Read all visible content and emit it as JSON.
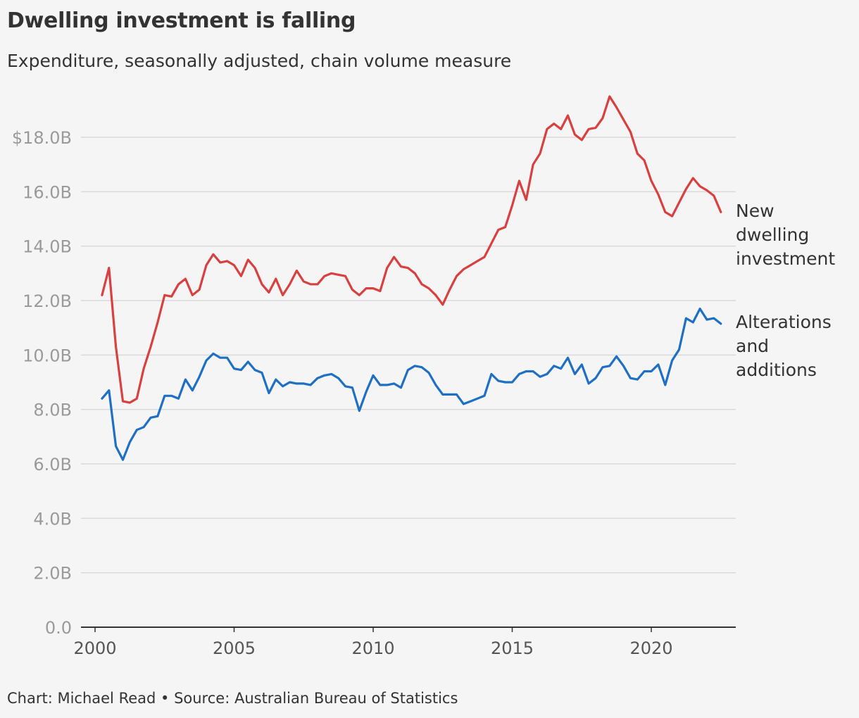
{
  "title": "Dwelling investment is falling",
  "subtitle": "Expenditure, seasonally adjusted, chain volume measure",
  "footer": "Chart: Michael Read • Source: Australian Bureau of Statistics",
  "colors": {
    "background": "#f5f5f5",
    "grid": "#d9d9d9",
    "axis": "#333333",
    "new_dwelling": "#d94040",
    "alterations": "#1f6fc4"
  },
  "chart_data": {
    "type": "line",
    "ylim": [
      0,
      20
    ],
    "xlim": [
      2000,
      2023
    ],
    "yticks": [
      {
        "value": 0,
        "label": "0.0"
      },
      {
        "value": 2,
        "label": "2.0B"
      },
      {
        "value": 4,
        "label": "4.0B"
      },
      {
        "value": 6,
        "label": "6.0B"
      },
      {
        "value": 8,
        "label": "8.0B"
      },
      {
        "value": 10,
        "label": "10.0B"
      },
      {
        "value": 12,
        "label": "12.0B"
      },
      {
        "value": 14,
        "label": "14.0B"
      },
      {
        "value": 16,
        "label": "16.0B"
      },
      {
        "value": 18,
        "label": "$18.0B"
      }
    ],
    "xticks": [
      {
        "value": 2000,
        "label": "2000"
      },
      {
        "value": 2005,
        "label": "2005"
      },
      {
        "value": 2010,
        "label": "2010"
      },
      {
        "value": 2015,
        "label": "2015"
      },
      {
        "value": 2020,
        "label": "2020"
      }
    ],
    "grid": true,
    "legend": "right, labels at line ends",
    "series": [
      {
        "name": "New dwelling investment",
        "label_lines": [
          "New",
          "dwelling",
          "investment"
        ],
        "color": "#d94040",
        "x": [
          2000.25,
          2000.5,
          2000.75,
          2001,
          2001.25,
          2001.5,
          2001.75,
          2002,
          2002.25,
          2002.5,
          2002.75,
          2003,
          2003.25,
          2003.5,
          2003.75,
          2004,
          2004.25,
          2004.5,
          2004.75,
          2005,
          2005.25,
          2005.5,
          2005.75,
          2006,
          2006.25,
          2006.5,
          2006.75,
          2007,
          2007.25,
          2007.5,
          2007.75,
          2008,
          2008.25,
          2008.5,
          2008.75,
          2009,
          2009.25,
          2009.5,
          2009.75,
          2010,
          2010.25,
          2010.5,
          2010.75,
          2011,
          2011.25,
          2011.5,
          2011.75,
          2012,
          2012.25,
          2012.5,
          2012.75,
          2013,
          2013.25,
          2013.5,
          2013.75,
          2014,
          2014.25,
          2014.5,
          2014.75,
          2015,
          2015.25,
          2015.5,
          2015.75,
          2016,
          2016.25,
          2016.5,
          2016.75,
          2017,
          2017.25,
          2017.5,
          2017.75,
          2018,
          2018.25,
          2018.5,
          2018.75,
          2019,
          2019.25,
          2019.5,
          2019.75,
          2020,
          2020.25,
          2020.5,
          2020.75,
          2021,
          2021.25,
          2021.5,
          2021.75,
          2022,
          2022.25,
          2022.5
        ],
        "y": [
          12.2,
          13.2,
          10.3,
          8.3,
          8.25,
          8.4,
          9.5,
          10.3,
          11.2,
          12.2,
          12.15,
          12.6,
          12.8,
          12.2,
          12.4,
          13.3,
          13.7,
          13.4,
          13.45,
          13.3,
          12.9,
          13.5,
          13.2,
          12.6,
          12.3,
          12.8,
          12.2,
          12.6,
          13.1,
          12.7,
          12.6,
          12.6,
          12.9,
          13.0,
          12.95,
          12.9,
          12.4,
          12.2,
          12.45,
          12.45,
          12.35,
          13.2,
          13.6,
          13.25,
          13.2,
          13.0,
          12.6,
          12.45,
          12.2,
          11.85,
          12.4,
          12.9,
          13.15,
          13.3,
          13.45,
          13.6,
          14.1,
          14.6,
          14.7,
          15.5,
          16.4,
          15.7,
          17.0,
          17.4,
          18.3,
          18.5,
          18.3,
          18.8,
          18.1,
          17.9,
          18.3,
          18.35,
          18.7,
          19.5,
          19.1,
          18.65,
          18.2,
          17.4,
          17.15,
          16.4,
          15.9,
          15.25,
          15.1,
          15.6,
          16.1,
          16.5,
          16.2,
          16.05,
          15.85,
          15.25
        ]
      },
      {
        "name": "Alterations and additions",
        "label_lines": [
          "Alterations",
          "and",
          "additions"
        ],
        "color": "#1f6fc4",
        "x": [
          2000.25,
          2000.5,
          2000.75,
          2001,
          2001.25,
          2001.5,
          2001.75,
          2002,
          2002.25,
          2002.5,
          2002.75,
          2003,
          2003.25,
          2003.5,
          2003.75,
          2004,
          2004.25,
          2004.5,
          2004.75,
          2005,
          2005.25,
          2005.5,
          2005.75,
          2006,
          2006.25,
          2006.5,
          2006.75,
          2007,
          2007.25,
          2007.5,
          2007.75,
          2008,
          2008.25,
          2008.5,
          2008.75,
          2009,
          2009.25,
          2009.5,
          2009.75,
          2010,
          2010.25,
          2010.5,
          2010.75,
          2011,
          2011.25,
          2011.5,
          2011.75,
          2012,
          2012.25,
          2012.5,
          2012.75,
          2013,
          2013.25,
          2013.5,
          2013.75,
          2014,
          2014.25,
          2014.5,
          2014.75,
          2015,
          2015.25,
          2015.5,
          2015.75,
          2016,
          2016.25,
          2016.5,
          2016.75,
          2017,
          2017.25,
          2017.5,
          2017.75,
          2018,
          2018.25,
          2018.5,
          2018.75,
          2019,
          2019.25,
          2019.5,
          2019.75,
          2020,
          2020.25,
          2020.5,
          2020.75,
          2021,
          2021.25,
          2021.5,
          2021.75,
          2022,
          2022.25,
          2022.5
        ],
        "y": [
          8.4,
          8.7,
          6.65,
          6.15,
          6.8,
          7.25,
          7.35,
          7.7,
          7.75,
          8.5,
          8.5,
          8.4,
          9.1,
          8.7,
          9.2,
          9.8,
          10.05,
          9.9,
          9.9,
          9.5,
          9.45,
          9.75,
          9.45,
          9.35,
          8.6,
          9.1,
          8.85,
          9.0,
          8.95,
          8.95,
          8.9,
          9.15,
          9.25,
          9.3,
          9.15,
          8.85,
          8.8,
          7.95,
          8.65,
          9.25,
          8.9,
          8.9,
          8.95,
          8.8,
          9.45,
          9.6,
          9.55,
          9.35,
          8.9,
          8.55,
          8.55,
          8.55,
          8.2,
          8.3,
          8.4,
          8.5,
          9.3,
          9.05,
          9.0,
          9.0,
          9.3,
          9.4,
          9.4,
          9.2,
          9.3,
          9.6,
          9.5,
          9.9,
          9.3,
          9.65,
          8.95,
          9.15,
          9.55,
          9.6,
          9.95,
          9.6,
          9.15,
          9.1,
          9.4,
          9.4,
          9.65,
          8.9,
          9.8,
          10.2,
          11.35,
          11.2,
          11.7,
          11.3,
          11.35,
          11.15
        ]
      }
    ]
  }
}
